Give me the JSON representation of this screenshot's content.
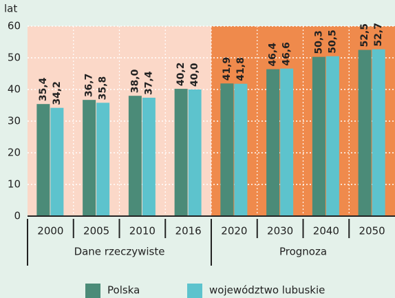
{
  "chart_data": {
    "type": "bar",
    "y_label": "lat",
    "categories": [
      "2000",
      "2005",
      "2010",
      "2016",
      "2020",
      "2030",
      "2040",
      "2050"
    ],
    "series": [
      {
        "name": "Polska",
        "color": "#4b8b78",
        "values": [
          35.4,
          36.7,
          38.0,
          40.2,
          41.9,
          46.4,
          50.3,
          52.5
        ],
        "value_labels": [
          "35,4",
          "36,7",
          "38,0",
          "40,2",
          "41,9",
          "46,4",
          "50,3",
          "52,5"
        ]
      },
      {
        "name": "województwo lubuskie",
        "color": "#5dc3cd",
        "values": [
          34.2,
          35.8,
          37.4,
          40.0,
          41.8,
          46.6,
          50.5,
          52.7
        ],
        "value_labels": [
          "34,2",
          "35,8",
          "37,4",
          "40,0",
          "41,8",
          "46,6",
          "50,5",
          "52,7"
        ]
      }
    ],
    "groups": [
      {
        "label": "Dane rzeczywiste",
        "from": "2000",
        "to": "2016",
        "color": "#fbd8c8"
      },
      {
        "label": "Prognoza",
        "from": "2020",
        "to": "2050",
        "color": "#ef8a4c"
      }
    ],
    "ylim": [
      0,
      60
    ],
    "yticks": [
      0,
      10,
      20,
      30,
      40,
      50,
      60
    ],
    "grid": true
  }
}
